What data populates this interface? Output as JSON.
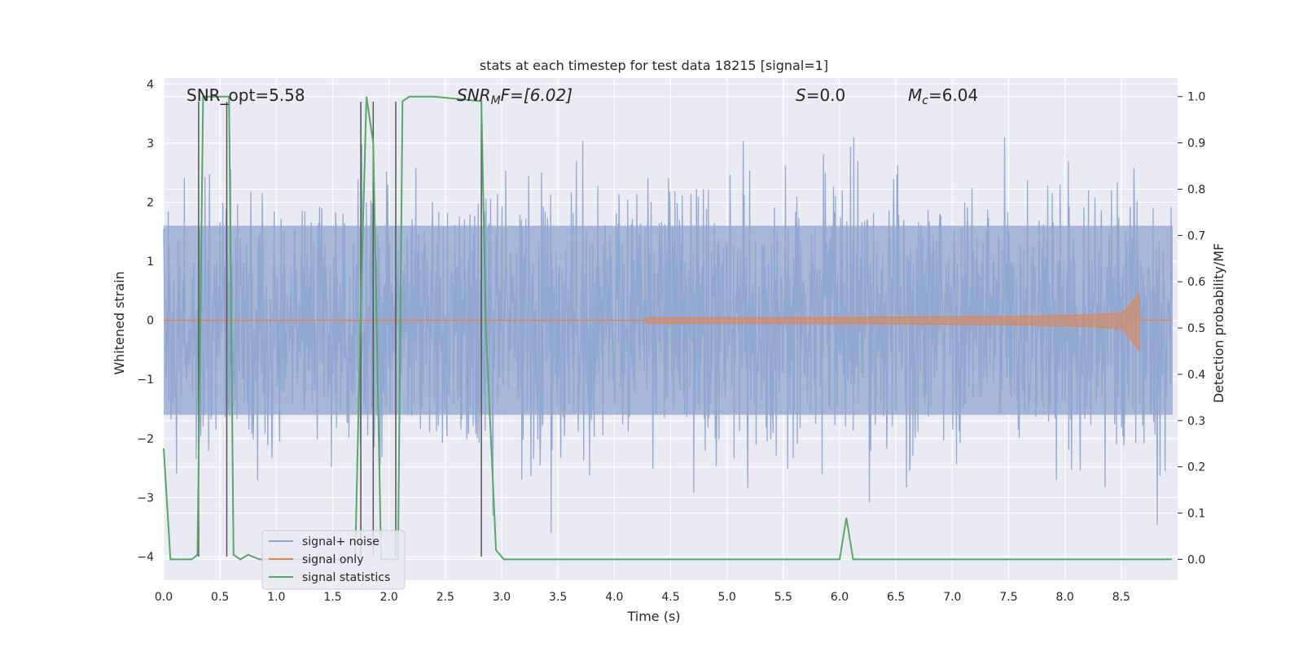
{
  "chart_data": {
    "type": "line",
    "title": "stats at each timestep for test data 18215 [signal=1]",
    "xlabel": "Time (s)",
    "ylabel": "Whitened strain",
    "y2label": "Detection probability/MF",
    "xlim": [
      0.0,
      9.0
    ],
    "ylim": [
      -4.4,
      4.1
    ],
    "y2lim": [
      -0.045,
      1.04
    ],
    "xticks": [
      "0.0",
      "0.5",
      "1.0",
      "1.5",
      "2.0",
      "2.5",
      "3.0",
      "3.5",
      "4.0",
      "4.5",
      "5.0",
      "5.5",
      "6.0",
      "6.5",
      "7.0",
      "7.5",
      "8.0",
      "8.5"
    ],
    "yticks": [
      "4",
      "3",
      "2",
      "1",
      "0",
      "−1",
      "−2",
      "−3",
      "−4"
    ],
    "y2ticks": [
      "1.0",
      "0.9",
      "0.8",
      "0.7",
      "0.6",
      "0.5",
      "0.4",
      "0.3",
      "0.2",
      "0.1",
      "0.0"
    ],
    "grid": true,
    "legend_position": "lower-left",
    "annotations": {
      "snr_opt": "SNR_opt=5.58",
      "snr_mf_name": "SNR",
      "snr_mf_sub": "M",
      "snr_mf_rest": "F=[6.02]",
      "s_name": "S",
      "s_rest": "=0.0",
      "mc_name": "M",
      "mc_sub": "c",
      "mc_rest": "=6.04"
    },
    "series": [
      {
        "name": "signal+ noise",
        "color": "#8fa5cf",
        "description": "whitened noise, roughly ±1.6 with peaks near ±3",
        "amplitude_envelope": 1.6
      },
      {
        "name": "signal only",
        "color": "#dd8452",
        "chirp_start": 4.3,
        "merger_time": 8.66,
        "peak_amplitude": 0.45
      },
      {
        "name": "signal statistics",
        "color": "#55a868",
        "x": [
          0.0,
          0.06,
          0.25,
          0.3,
          0.35,
          0.4,
          0.55,
          0.58,
          0.62,
          0.68,
          0.75,
          0.85,
          1.0,
          1.5,
          1.7,
          1.75,
          1.8,
          1.86,
          1.93,
          1.99,
          2.08,
          2.12,
          2.18,
          2.4,
          2.82,
          2.86,
          2.95,
          3.02,
          3.5,
          4.0,
          5.0,
          6.0,
          6.06,
          6.12,
          7.0,
          8.0,
          8.5,
          8.95
        ],
        "y": [
          0.24,
          0.0,
          0.0,
          0.01,
          1.0,
          1.0,
          1.0,
          1.0,
          0.01,
          0.0,
          0.01,
          0.0,
          0.0,
          0.0,
          0.0,
          0.55,
          1.0,
          0.9,
          0.0,
          0.0,
          0.0,
          0.99,
          1.0,
          1.0,
          0.99,
          0.5,
          0.02,
          0.0,
          0.0,
          0.0,
          0.0,
          0.0,
          0.09,
          0.0,
          0.0,
          0.0,
          0.0,
          0.0
        ]
      }
    ],
    "vertical_lines": [
      0.31,
      0.56,
      1.75,
      1.86,
      2.06,
      2.82
    ]
  }
}
